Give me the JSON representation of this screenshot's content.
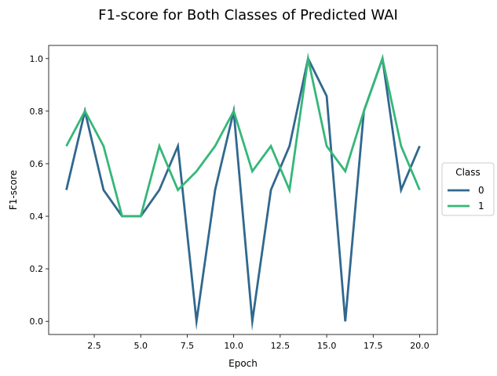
{
  "chart_data": {
    "type": "line",
    "title": "F1-score for Both Classes of Predicted WAI",
    "xlabel": "Epoch",
    "ylabel": "F1-score",
    "xlim": [
      0.05,
      20.95
    ],
    "ylim": [
      -0.05,
      1.05
    ],
    "xticks": [
      2.5,
      5.0,
      7.5,
      10.0,
      12.5,
      15.0,
      17.5,
      20.0
    ],
    "xtick_labels": [
      "2.5",
      "5.0",
      "7.5",
      "10.0",
      "12.5",
      "15.0",
      "17.5",
      "20.0"
    ],
    "yticks": [
      0.0,
      0.2,
      0.4,
      0.6,
      0.8,
      1.0
    ],
    "ytick_labels": [
      "0.0",
      "0.2",
      "0.4",
      "0.6",
      "0.8",
      "1.0"
    ],
    "grid": false,
    "legend": {
      "title": "Class",
      "placement": "center-right-outside"
    },
    "x": [
      1,
      2,
      3,
      4,
      5,
      6,
      7,
      8,
      9,
      10,
      11,
      12,
      13,
      14,
      15,
      16,
      17,
      18,
      19,
      20
    ],
    "series": [
      {
        "name": "0",
        "color": "#31688e",
        "values": [
          0.5,
          0.8,
          0.5,
          0.4,
          0.4,
          0.5,
          0.667,
          0.0,
          0.5,
          0.8,
          0.0,
          0.5,
          0.667,
          1.0,
          0.857,
          0.0,
          0.8,
          1.0,
          0.5,
          0.667
        ]
      },
      {
        "name": "1",
        "color": "#35b779",
        "values": [
          0.667,
          0.8,
          0.667,
          0.4,
          0.4,
          0.667,
          0.5,
          0.571,
          0.667,
          0.8,
          0.571,
          0.667,
          0.5,
          1.0,
          0.667,
          0.571,
          0.8,
          1.0,
          0.667,
          0.5
        ]
      }
    ]
  }
}
